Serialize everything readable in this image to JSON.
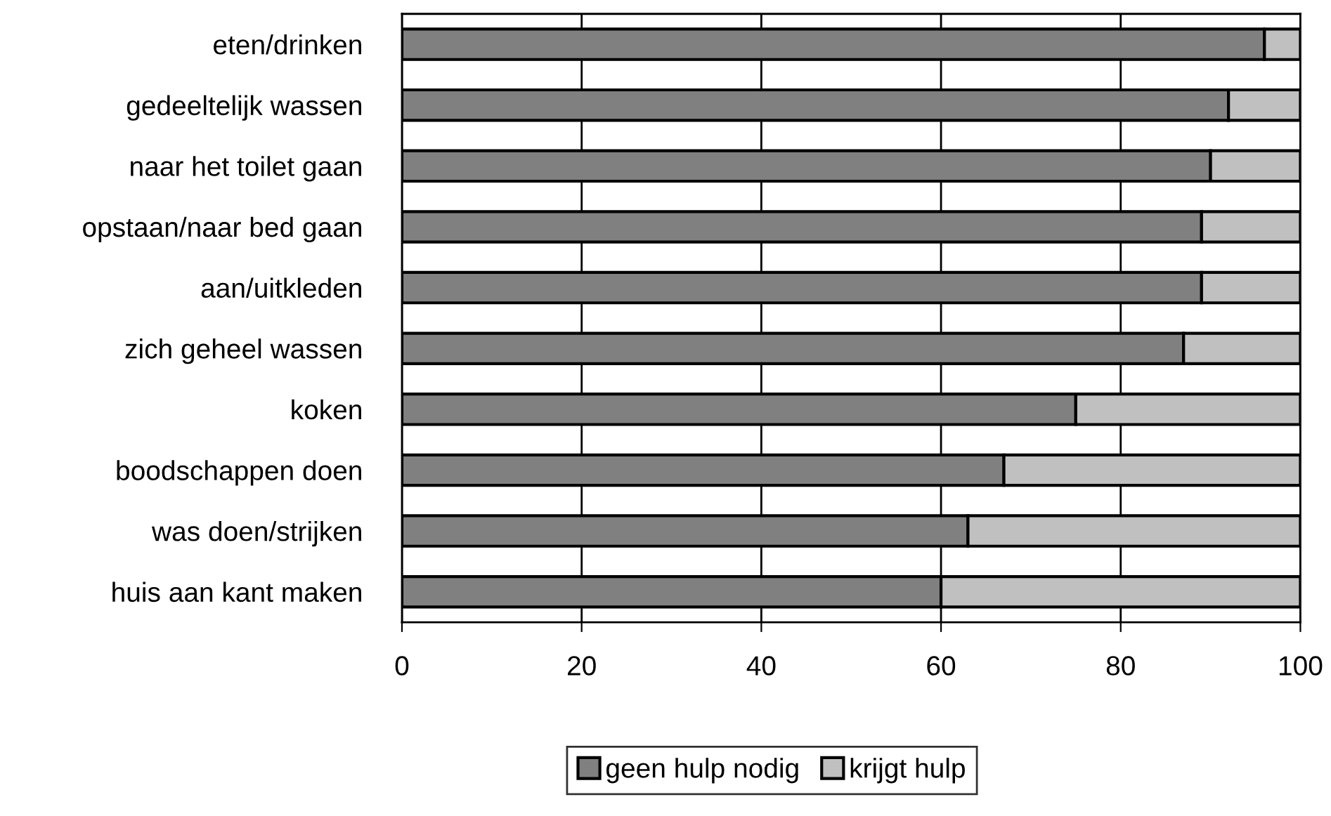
{
  "chart_data": {
    "type": "bar",
    "orientation": "horizontal",
    "stacked": true,
    "categories": [
      "eten/drinken",
      "gedeeltelijk wassen",
      "naar het toilet gaan",
      "opstaan/naar bed gaan",
      "aan/uitkleden",
      "zich geheel wassen",
      "koken",
      "boodschappen doen",
      "was doen/strijken",
      "huis aan kant maken"
    ],
    "series": [
      {
        "name": "geen hulp nodig",
        "color": "#808080",
        "values": [
          96,
          92,
          90,
          89,
          89,
          87,
          75,
          67,
          63,
          60
        ]
      },
      {
        "name": "krijgt hulp",
        "color": "#c0c0c0",
        "values": [
          4,
          8,
          10,
          11,
          11,
          13,
          25,
          33,
          37,
          40
        ]
      }
    ],
    "xlim": [
      0,
      100
    ],
    "xticks": [
      0,
      20,
      40,
      60,
      80,
      100
    ],
    "grid": "x",
    "legend": "bottom"
  }
}
